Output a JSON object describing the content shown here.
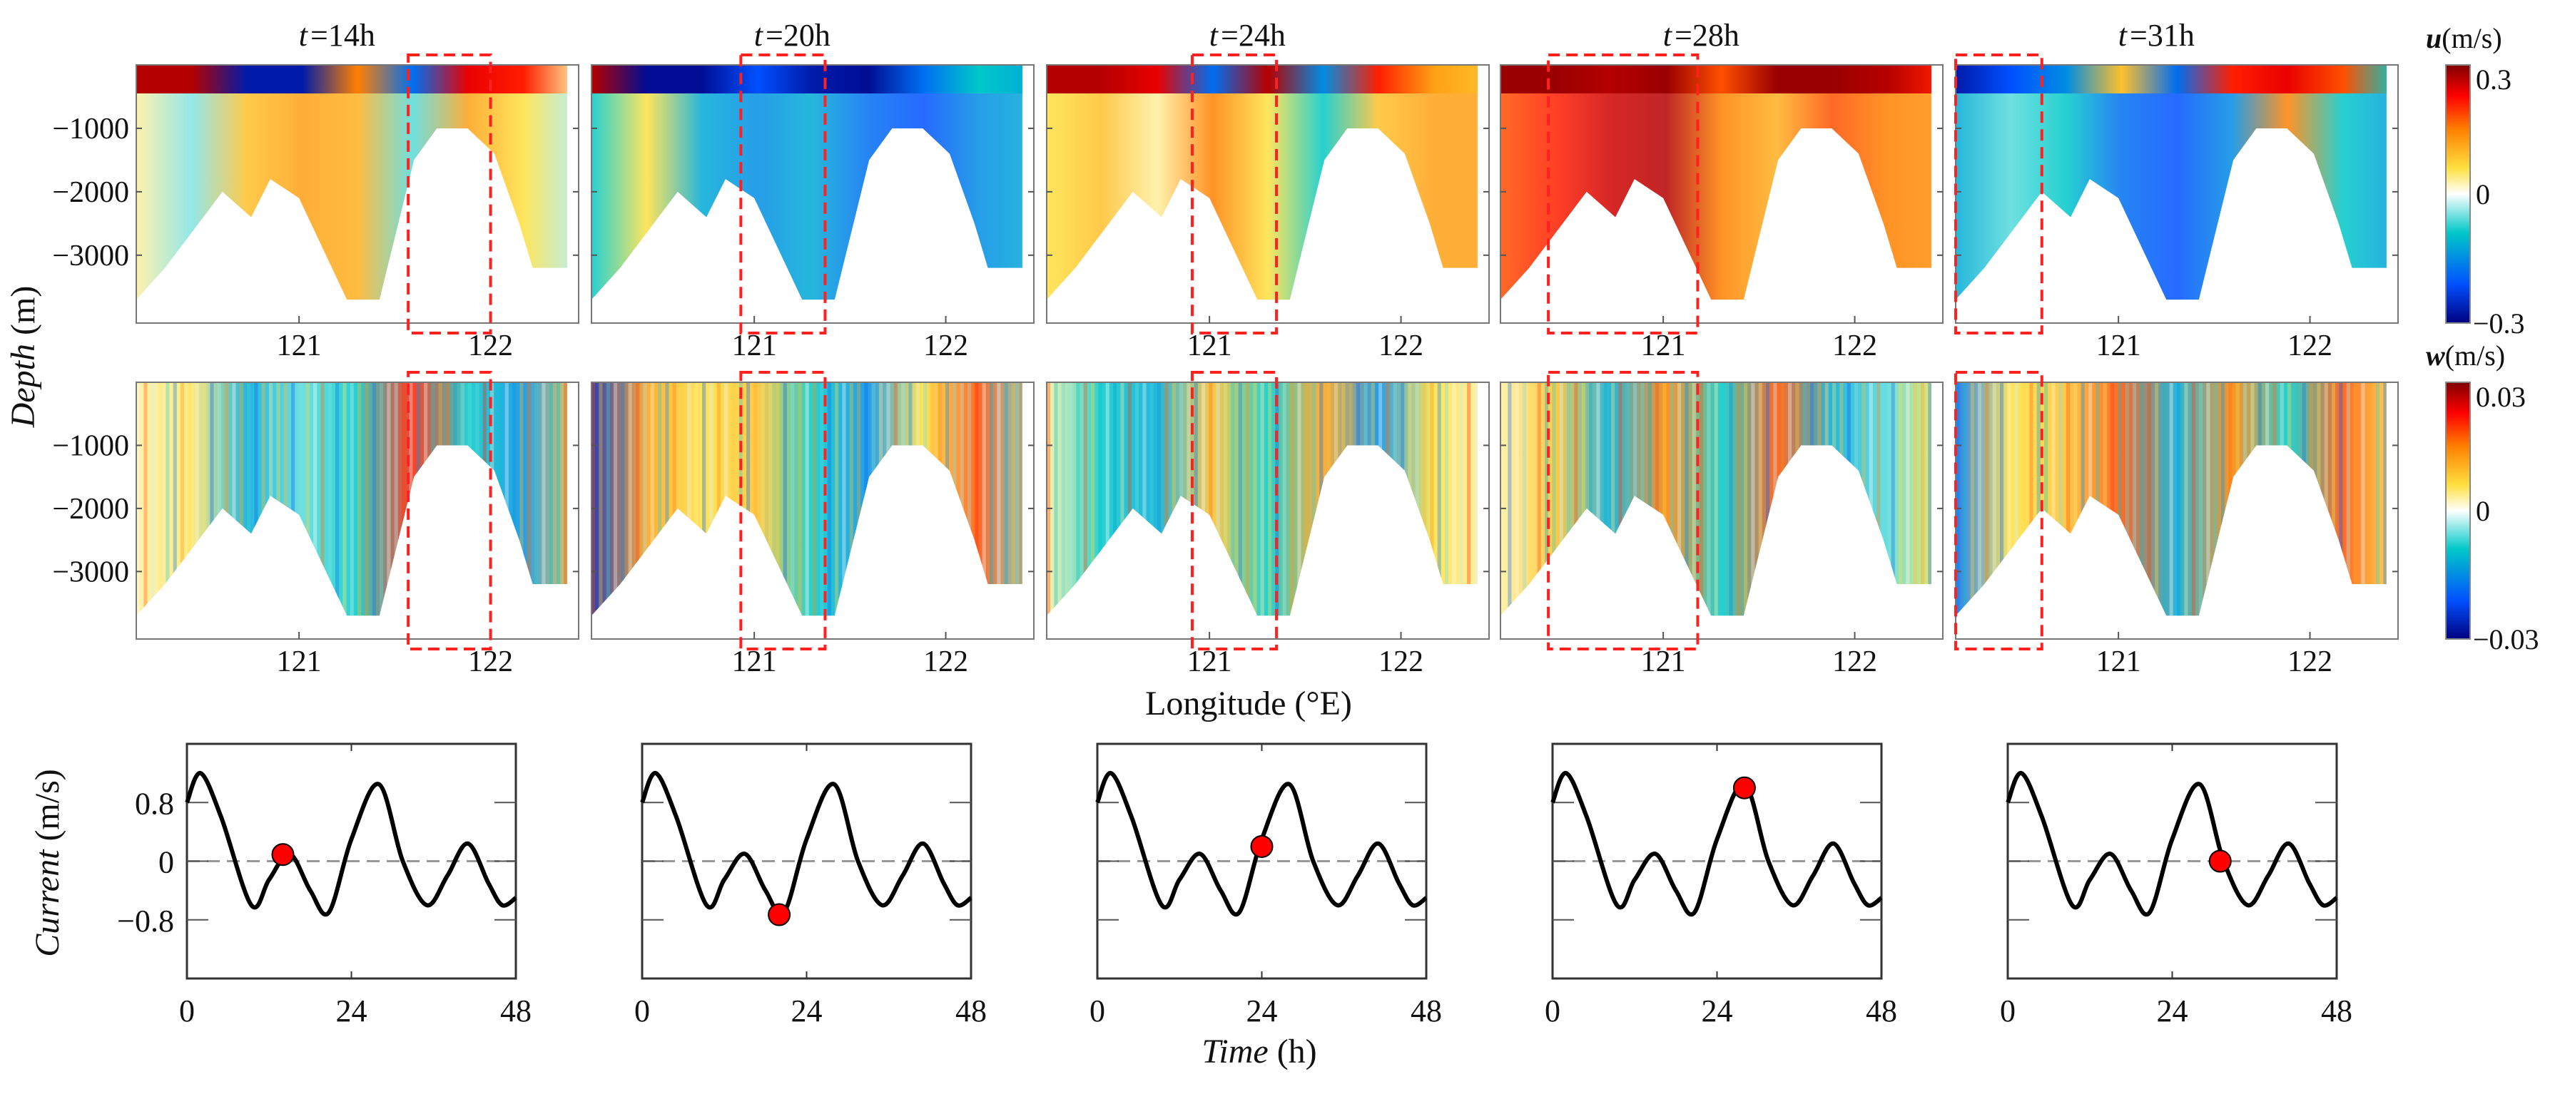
{
  "chart_data": {
    "type": "heatmap",
    "panels": [
      {
        "title_var": "t",
        "title_val": " =14h",
        "u_profile": [
          0.1,
          -0.15,
          0.3,
          0.4,
          0.35,
          -0.2,
          0.4,
          0.2,
          -0.1
        ],
        "u_surface": [
          0.9,
          0.9,
          -0.9,
          -0.9,
          0.5,
          -0.6,
          0.8,
          0.7,
          0.1
        ],
        "w_profile": [
          0.1,
          0.15,
          -0.4,
          -0.2,
          -0.3,
          0.7,
          -0.3,
          -0.5,
          0.3
        ],
        "highlight_lon": [
          121.57,
          122.0
        ],
        "marker": {
          "t": 14,
          "current": 0.09
        }
      },
      {
        "title_var": "t",
        "title_val": " =20h",
        "u_profile": [
          -0.3,
          0.2,
          -0.4,
          -0.5,
          -0.4,
          -0.6,
          -0.7,
          -0.5,
          -0.4
        ],
        "u_surface": [
          0.9,
          -0.95,
          -0.95,
          -0.7,
          -0.9,
          -0.95,
          -0.6,
          -0.3,
          -0.4
        ],
        "w_profile": [
          -0.9,
          0.4,
          0.2,
          0.3,
          -0.3,
          -0.5,
          0.2,
          0.6,
          -0.2
        ],
        "highlight_lon": [
          120.93,
          121.37
        ],
        "marker": {
          "t": 20,
          "current": -0.73
        }
      },
      {
        "title_var": "t",
        "title_val": " =24h",
        "u_profile": [
          0.2,
          0.3,
          0.1,
          0.5,
          0.2,
          -0.3,
          0.3,
          0.4,
          0.4
        ],
        "u_surface": [
          0.9,
          0.9,
          0.8,
          -0.6,
          0.9,
          -0.5,
          0.7,
          0.4,
          0.3
        ],
        "w_profile": [
          0.1,
          -0.3,
          -0.4,
          0.3,
          -0.3,
          0.4,
          -0.5,
          0.2,
          0.1
        ],
        "highlight_lon": [
          120.91,
          121.35
        ],
        "marker": {
          "t": 24,
          "current": 0.2
        }
      },
      {
        "title_var": "t",
        "title_val": " =28h",
        "u_profile": [
          0.6,
          0.7,
          0.85,
          0.9,
          0.5,
          0.35,
          0.6,
          0.5,
          0.45
        ],
        "u_surface": [
          0.95,
          0.95,
          0.9,
          0.95,
          0.6,
          0.95,
          0.95,
          0.9,
          0.7
        ],
        "w_profile": [
          0.1,
          0.3,
          -0.4,
          0.5,
          -0.3,
          0.6,
          -0.4,
          -0.2,
          0.2
        ],
        "highlight_lon": [
          120.4,
          121.18
        ],
        "marker": {
          "t": 28,
          "current": 1.0
        }
      },
      {
        "title_var": "t",
        "title_val": " =31h",
        "u_profile": [
          -0.4,
          -0.2,
          -0.3,
          -0.6,
          -0.7,
          -0.5,
          0.5,
          -0.3,
          -0.45
        ],
        "u_surface": [
          -0.9,
          -0.7,
          -0.5,
          0.3,
          -0.6,
          0.7,
          0.8,
          0.6,
          -0.3
        ],
        "w_profile": [
          -0.6,
          0.2,
          0.3,
          0.6,
          -0.4,
          0.5,
          -0.3,
          0.6,
          0.2
        ],
        "highlight_lon": [
          120.15,
          120.6
        ],
        "marker": {
          "t": 31,
          "current": 0.0
        }
      }
    ],
    "heatmap_axes": {
      "xlabel": "Longitude (°E)",
      "ylabel_italic": "Depth",
      "ylabel_unit": " (m)",
      "xlim": [
        120.15,
        122.46
      ],
      "ylim": [
        -4070,
        0
      ],
      "xticks": [
        121,
        122
      ],
      "xtick_labels": [
        "121",
        "122"
      ],
      "yticks": [
        -1000,
        -2000,
        -3000
      ],
      "ytick_labels": [
        "−1000",
        "−2000",
        "−3000"
      ],
      "bathymetry": [
        [
          120.15,
          -3700
        ],
        [
          120.3,
          -3200
        ],
        [
          120.5,
          -2400
        ],
        [
          120.6,
          -2000
        ],
        [
          120.75,
          -2400
        ],
        [
          120.85,
          -1800
        ],
        [
          121.0,
          -2100
        ],
        [
          121.25,
          -3700
        ],
        [
          121.42,
          -3700
        ],
        [
          121.6,
          -1500
        ],
        [
          121.72,
          -1000
        ],
        [
          121.88,
          -1000
        ],
        [
          122.02,
          -1400
        ],
        [
          122.15,
          -2500
        ],
        [
          122.22,
          -3200
        ],
        [
          122.4,
          -3200
        ],
        [
          122.4,
          0
        ]
      ]
    },
    "colorbars": [
      {
        "var": "u",
        "unit": "(m/s)",
        "max_label": "0.3",
        "mid_label": "0",
        "min_label": "−0.3",
        "range": [
          -0.3,
          0.3
        ]
      },
      {
        "var": "w",
        "unit": "(m/s)",
        "max_label": "0.03",
        "mid_label": "0",
        "min_label": "−0.03",
        "range": [
          -0.03,
          0.03
        ]
      }
    ],
    "colormap": [
      "#00007f",
      "#0050ff",
      "#00c8c8",
      "#ffffff",
      "#ffe040",
      "#ff8000",
      "#ff0000",
      "#800000"
    ],
    "current_series": {
      "type": "line",
      "xlabel_italic": "Time",
      "xlabel_unit": " (h)",
      "ylabel_italic": "Current",
      "ylabel_unit": " (m/s)",
      "xlim": [
        0,
        48
      ],
      "ylim": [
        -1.6,
        1.6
      ],
      "xticks": [
        0,
        24,
        48
      ],
      "xtick_labels": [
        "0",
        "24",
        "48"
      ],
      "yticks": [
        0.8,
        0,
        -0.8
      ],
      "ytick_labels": [
        "0.8",
        "0",
        "−0.8"
      ],
      "t": [
        0,
        2,
        5,
        9.4,
        12,
        15,
        18,
        20.7,
        24,
        28,
        31.5,
        35,
        38,
        41,
        44,
        46,
        48
      ],
      "values": [
        0.8,
        1.2,
        0.6,
        -0.6,
        -0.25,
        0.1,
        -0.4,
        -0.7,
        0.3,
        1.05,
        0.0,
        -0.6,
        -0.2,
        0.24,
        -0.3,
        -0.6,
        -0.5
      ],
      "line_color": "#000000",
      "marker_color": "#ff0000",
      "zero_line_color": "#999999"
    },
    "highlight_color": "#ff2020"
  }
}
